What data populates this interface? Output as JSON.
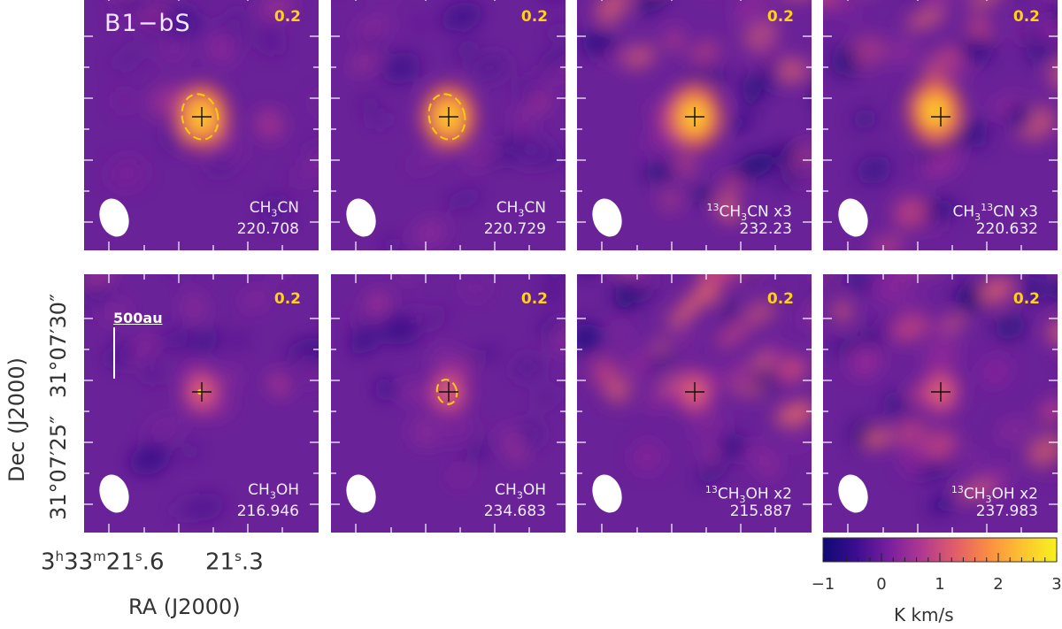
{
  "source_name": "B1−bS",
  "colorbar": {
    "label": "K km/s",
    "ticks": [
      "−1",
      "0",
      "1",
      "2",
      "3"
    ],
    "range": [
      -1,
      3
    ],
    "colormap": [
      "#0f0875",
      "#3c0e8f",
      "#7a1fa0",
      "#b23a8f",
      "#e35f67",
      "#fb8f42",
      "#fdc42f",
      "#f5f21e"
    ]
  },
  "axes": {
    "ylabel": "Dec (J2000)",
    "xlabel": "RA (J2000)",
    "dec_ticks": [
      "31°07′30″",
      "31°07′25″"
    ],
    "ra_ticks": {
      "first": {
        "h": "3",
        "m": "33",
        "s": "21",
        "frac": "6"
      },
      "second": {
        "s": "21",
        "frac": "3"
      }
    }
  },
  "scalebar": {
    "label": "500au"
  },
  "panels": [
    {
      "mol_pre": "CH",
      "sub": "3",
      "mol_post": "CN",
      "mult": "",
      "iso_pos": "",
      "freq": "220.708",
      "level": "0.2",
      "contour": "large",
      "title": true,
      "scalebar": false
    },
    {
      "mol_pre": "CH",
      "sub": "3",
      "mol_post": "CN",
      "mult": "",
      "iso_pos": "",
      "freq": "220.729",
      "level": "0.2",
      "contour": "large",
      "title": false,
      "scalebar": false
    },
    {
      "mol_pre": "CH",
      "sub": "3",
      "mol_post": "CN",
      "mult": "x3",
      "iso_pos": "C1",
      "freq": "232.23",
      "level": "0.2",
      "contour": "none",
      "title": false,
      "scalebar": false
    },
    {
      "mol_pre": "CH",
      "sub": "3",
      "mol_post": "CN",
      "mult": "x3",
      "iso_pos": "C2",
      "freq": "220.632",
      "level": "0.2",
      "contour": "none",
      "title": false,
      "scalebar": false
    },
    {
      "mol_pre": "CH",
      "sub": "3",
      "mol_post": "OH",
      "mult": "",
      "iso_pos": "",
      "freq": "216.946",
      "level": "0.2",
      "contour": "dot",
      "title": false,
      "scalebar": true
    },
    {
      "mol_pre": "CH",
      "sub": "3",
      "mol_post": "OH",
      "mult": "",
      "iso_pos": "",
      "freq": "234.683",
      "level": "0.2",
      "contour": "small",
      "title": false,
      "scalebar": false
    },
    {
      "mol_pre": "CH",
      "sub": "3",
      "mol_post": "OH",
      "mult": "x2",
      "iso_pos": "C1",
      "freq": "215.887",
      "level": "0.2",
      "contour": "none",
      "title": false,
      "scalebar": false
    },
    {
      "mol_pre": "CH",
      "sub": "3",
      "mol_post": "OH",
      "mult": "x2",
      "iso_pos": "C1",
      "freq": "237.983",
      "level": "0.2",
      "contour": "none",
      "title": false,
      "scalebar": false
    }
  ],
  "isotope_label": "13"
}
